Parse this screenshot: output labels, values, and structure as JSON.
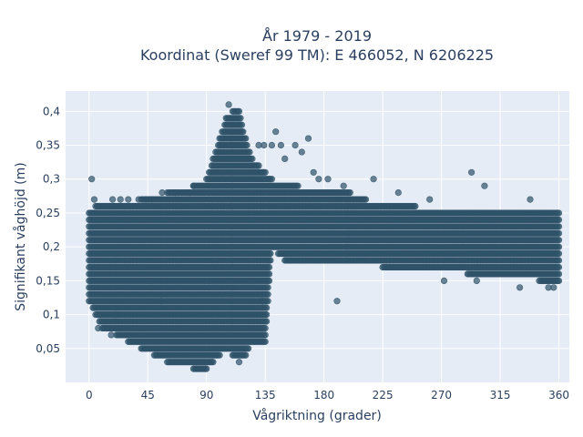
{
  "chart_data": {
    "type": "scatter",
    "title": "År 1979 - 2019",
    "subtitle": "Koordinat (Sweref 99 TM): E 466052, N 6206225",
    "xlabel": "Vågriktning (grader)",
    "ylabel": "Signifikant våghöjd (m)",
    "xlim": [
      -18,
      368
    ],
    "ylim": [
      0,
      0.43
    ],
    "x_ticks": [
      0,
      45,
      90,
      135,
      180,
      225,
      270,
      315,
      360
    ],
    "x_tick_labels": [
      "0",
      "45",
      "90",
      "135",
      "180",
      "225",
      "270",
      "315",
      "360"
    ],
    "y_ticks": [
      0.05,
      0.1,
      0.15,
      0.2,
      0.25,
      0.3,
      0.35,
      0.4
    ],
    "y_tick_labels": [
      "0,05",
      "0,1",
      "0,15",
      "0,2",
      "0,25",
      "0,3",
      "0,35",
      "0,4"
    ],
    "grid": true,
    "marker_color": "#2f5268",
    "background_color": "#e5ecf6",
    "envelope": {
      "x": [
        0,
        5,
        10,
        15,
        20,
        30,
        40,
        50,
        60,
        70,
        80,
        90,
        95,
        100,
        105,
        110,
        115,
        120,
        125,
        135,
        140,
        150,
        160,
        180,
        200,
        225,
        250,
        270,
        290,
        310,
        330,
        345,
        355,
        360
      ],
      "y_min": [
        0.12,
        0.1,
        0.08,
        0.07,
        0.07,
        0.06,
        0.05,
        0.04,
        0.03,
        0.03,
        0.02,
        0.02,
        0.03,
        0.04,
        0.05,
        0.04,
        0.03,
        0.04,
        0.06,
        0.06,
        0.2,
        0.18,
        0.18,
        0.18,
        0.18,
        0.17,
        0.17,
        0.17,
        0.16,
        0.16,
        0.16,
        0.15,
        0.15,
        0.15
      ],
      "y_max": [
        0.25,
        0.26,
        0.26,
        0.26,
        0.26,
        0.26,
        0.27,
        0.27,
        0.28,
        0.28,
        0.29,
        0.3,
        0.33,
        0.36,
        0.39,
        0.4,
        0.4,
        0.36,
        0.33,
        0.31,
        0.3,
        0.29,
        0.29,
        0.28,
        0.28,
        0.26,
        0.26,
        0.25,
        0.25,
        0.25,
        0.25,
        0.25,
        0.25,
        0.25
      ]
    },
    "outliers": [
      {
        "x": 2,
        "y": 0.3
      },
      {
        "x": 4,
        "y": 0.27
      },
      {
        "x": 18,
        "y": 0.27
      },
      {
        "x": 24,
        "y": 0.27
      },
      {
        "x": 30,
        "y": 0.27
      },
      {
        "x": 38,
        "y": 0.27
      },
      {
        "x": 44,
        "y": 0.27
      },
      {
        "x": 48,
        "y": 0.27
      },
      {
        "x": 56,
        "y": 0.28
      },
      {
        "x": 66,
        "y": 0.28
      },
      {
        "x": 77,
        "y": 0.28
      },
      {
        "x": 80,
        "y": 0.29
      },
      {
        "x": 107,
        "y": 0.41
      },
      {
        "x": 130,
        "y": 0.35
      },
      {
        "x": 134,
        "y": 0.35
      },
      {
        "x": 140,
        "y": 0.35
      },
      {
        "x": 143,
        "y": 0.37
      },
      {
        "x": 147,
        "y": 0.35
      },
      {
        "x": 150,
        "y": 0.33
      },
      {
        "x": 158,
        "y": 0.35
      },
      {
        "x": 163,
        "y": 0.34
      },
      {
        "x": 168,
        "y": 0.36
      },
      {
        "x": 172,
        "y": 0.31
      },
      {
        "x": 176,
        "y": 0.3
      },
      {
        "x": 183,
        "y": 0.3
      },
      {
        "x": 195,
        "y": 0.29
      },
      {
        "x": 218,
        "y": 0.3
      },
      {
        "x": 237,
        "y": 0.28
      },
      {
        "x": 261,
        "y": 0.27
      },
      {
        "x": 293,
        "y": 0.31
      },
      {
        "x": 303,
        "y": 0.29
      },
      {
        "x": 338,
        "y": 0.27
      },
      {
        "x": 55,
        "y": 0.12
      },
      {
        "x": 133,
        "y": 0.12
      },
      {
        "x": 190,
        "y": 0.12
      },
      {
        "x": 272,
        "y": 0.15
      },
      {
        "x": 297,
        "y": 0.15
      },
      {
        "x": 330,
        "y": 0.14
      },
      {
        "x": 352,
        "y": 0.14
      },
      {
        "x": 356,
        "y": 0.14
      },
      {
        "x": 17,
        "y": 0.07
      },
      {
        "x": 7,
        "y": 0.08
      }
    ]
  }
}
